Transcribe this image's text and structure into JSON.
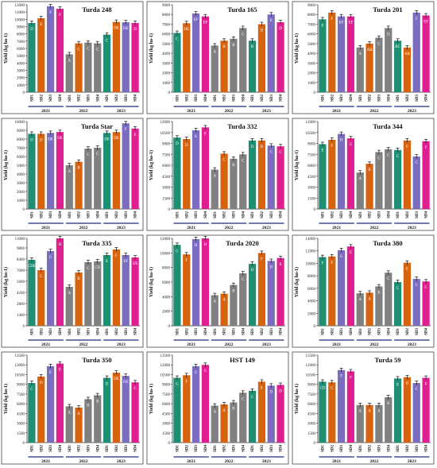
{
  "colors": {
    "bar": [
      "#1e8f73",
      "#d8630f",
      "#7b6cc0",
      "#e01e8f",
      "#808080"
    ],
    "year_bar": "#1b2a7a"
  },
  "charts": [
    {
      "title": "Turda 248",
      "ylabel": "Yield (kg ha-1)",
      "ylim": [
        0,
        12000
      ],
      "yticks": [
        0,
        1000,
        2000,
        3000,
        4000,
        5000,
        6000,
        7000,
        8000,
        9000,
        10000,
        11000,
        12000
      ],
      "values": [
        9500,
        10150,
        11800,
        11450,
        5200,
        6700,
        6800,
        6700,
        7900,
        9650,
        9600,
        9500
      ],
      "letters": [
        "D",
        "E",
        "F",
        "F",
        "A",
        "C",
        "C",
        "C",
        "C",
        "DE",
        "DE",
        "D"
      ]
    },
    {
      "title": "Turda 165",
      "ylabel": "Yield (kg ha-1)",
      "ylim": [
        0,
        9000
      ],
      "yticks": [
        0,
        1000,
        2000,
        3000,
        4000,
        5000,
        6000,
        7000,
        8000,
        9000
      ],
      "values": [
        6100,
        7100,
        8100,
        7800,
        4800,
        5300,
        5500,
        6600,
        5300,
        7000,
        8000,
        7200
      ],
      "letters": [
        "C",
        "DE",
        "EF",
        "EF",
        "A",
        "B",
        "B",
        "C",
        "B",
        "D",
        "E",
        "D"
      ]
    },
    {
      "title": "Turda 201",
      "ylabel": "Yield (kg ha-1)",
      "ylim": [
        0,
        9000
      ],
      "yticks": [
        0,
        1000,
        2000,
        3000,
        4000,
        5000,
        6000,
        7000,
        8000,
        9000
      ],
      "values": [
        7500,
        8200,
        7800,
        7800,
        4600,
        5000,
        5600,
        6600,
        5300,
        4600,
        8200,
        7900
      ],
      "letters": [
        "E",
        "F",
        "EF",
        "EF",
        "A",
        "AB",
        "C",
        "D",
        "BC",
        "AB",
        "F",
        "EF"
      ]
    },
    {
      "title": "Turda Star",
      "ylabel": "Yield (kg ha-1)",
      "ylim": [
        0,
        10000
      ],
      "yticks": [
        0,
        1000,
        2000,
        3000,
        4000,
        5000,
        6000,
        7000,
        8000,
        9000,
        10000
      ],
      "values": [
        8600,
        8600,
        8700,
        8800,
        5000,
        5400,
        6900,
        7000,
        8700,
        8800,
        9800,
        9200
      ],
      "letters": [
        "D",
        "D",
        "DE",
        "DE",
        "A",
        "B",
        "C",
        "C",
        "DE",
        "DE",
        "F",
        "E"
      ]
    },
    {
      "title": "Turda 332",
      "ylabel": "Yield (kg ha-1)",
      "ylim": [
        0,
        12000
      ],
      "yticks": [
        0,
        1500,
        3000,
        4500,
        6000,
        7500,
        9000,
        10500,
        12000
      ],
      "values": [
        9800,
        9600,
        10800,
        11200,
        5400,
        7600,
        6900,
        7500,
        9400,
        9400,
        8700,
        8600
      ],
      "letters": [
        "D",
        "D",
        "E",
        "E",
        "A",
        "C",
        "B",
        "C",
        "D",
        "D",
        "C",
        "C"
      ]
    },
    {
      "title": "Turda 344",
      "ylabel": "Yield (kg ha-1)",
      "ylim": [
        0,
        12000
      ],
      "yticks": [
        0,
        1500,
        3000,
        4500,
        6000,
        7500,
        9000,
        10500,
        12000
      ],
      "values": [
        8900,
        9500,
        10300,
        9700,
        5000,
        6200,
        7800,
        8200,
        8100,
        9400,
        7200,
        9300
      ],
      "letters": [
        "E",
        "F",
        "H",
        "G",
        "A",
        "B",
        "C",
        "C",
        "C",
        "F",
        "C",
        "F"
      ]
    },
    {
      "title": "Turda 335",
      "ylabel": "Yield (kg ha-1)",
      "ylim": [
        0,
        11000
      ],
      "yticks": [
        0,
        1400,
        2800,
        4200,
        5600,
        7000,
        8400,
        9800,
        11000
      ],
      "values": [
        8300,
        7000,
        9400,
        11000,
        4900,
        6700,
        8000,
        8100,
        8900,
        9600,
        8900,
        8600
      ],
      "letters": [
        "CDE",
        "C",
        "G",
        "H",
        "A",
        "B",
        "C",
        "CD",
        "E",
        "F",
        "EF",
        "DE"
      ]
    },
    {
      "title": "Turda 2020",
      "ylabel": "Yield (kg ha-1)",
      "ylim": [
        0,
        12000
      ],
      "yticks": [
        0,
        2000,
        4000,
        6000,
        8000,
        10000,
        12000
      ],
      "values": [
        11100,
        9800,
        11900,
        12000,
        4200,
        4400,
        5600,
        7200,
        8500,
        10000,
        8900,
        9300
      ],
      "letters": [
        "G",
        "F",
        "H",
        "H",
        "A",
        "A",
        "B",
        "C",
        "D",
        "F",
        "D",
        "E"
      ]
    },
    {
      "title": "Turda 380",
      "ylabel": "Yield (kg ha-1)",
      "ylim": [
        0,
        14000
      ],
      "yticks": [
        0,
        2000,
        4000,
        6000,
        8000,
        10000,
        12000,
        14000
      ],
      "values": [
        11000,
        11100,
        12100,
        12700,
        5200,
        5300,
        6300,
        8500,
        7000,
        10100,
        7500,
        7100
      ],
      "letters": [
        "F",
        "F",
        "G",
        "G",
        "A",
        "A",
        "B",
        "C",
        "C",
        "E",
        "C",
        "C"
      ]
    },
    {
      "title": "Turda 350",
      "ylabel": "Yield (kg ha-1)",
      "ylim": [
        0,
        13500
      ],
      "yticks": [
        0,
        1500,
        3000,
        4500,
        6000,
        7500,
        9000,
        10500,
        12000,
        13500
      ],
      "values": [
        9200,
        10200,
        11800,
        12200,
        5600,
        5400,
        6700,
        7300,
        10000,
        10800,
        10300,
        9300
      ],
      "letters": [
        "C",
        "D",
        "E",
        "E",
        "A",
        "A",
        "B",
        "B",
        "D",
        "DE",
        "DE",
        "C"
      ]
    },
    {
      "title": "HST 149",
      "ylabel": "Yield (kg ha-1)",
      "ylim": [
        0,
        13500
      ],
      "yticks": [
        0,
        1500,
        3000,
        4500,
        6000,
        7500,
        9000,
        10500,
        12000,
        13500
      ],
      "values": [
        10000,
        10400,
        11800,
        12000,
        5700,
        5900,
        6200,
        7700,
        8000,
        9400,
        8800,
        8900
      ],
      "letters": [
        "G",
        "F",
        "G",
        "G",
        "A",
        "A",
        "B",
        "C",
        "C",
        "E",
        "D",
        "D"
      ]
    },
    {
      "title": "Turda 59",
      "ylabel": "Yield (kg ha-1)",
      "ylim": [
        0,
        13500
      ],
      "yticks": [
        0,
        1500,
        3000,
        4500,
        6000,
        7500,
        9000,
        10500,
        12000,
        13500
      ],
      "values": [
        9400,
        9300,
        11200,
        11000,
        5800,
        5800,
        5800,
        7000,
        9900,
        10100,
        9200,
        10000
      ],
      "letters": [
        "CD",
        "C",
        "F",
        "F",
        "A",
        "A",
        "A",
        "B",
        "E",
        "D",
        "C",
        "E"
      ]
    }
  ],
  "chart_data": [
    {
      "type": "bar",
      "title": "Turda 248",
      "ylabel": "Yield (kg ha-1)",
      "categories": [
        "SD1",
        "SD2",
        "SD3",
        "SD4",
        "SD1",
        "SD2",
        "SD3",
        "SD4",
        "SD1",
        "SD2",
        "SD3",
        "SD4"
      ],
      "groups": [
        "2021",
        "2022",
        "2023"
      ],
      "values": [
        9500,
        10150,
        11800,
        11450,
        5200,
        6700,
        6800,
        6700,
        7900,
        9650,
        9600,
        9500
      ],
      "ylim": [
        0,
        12000
      ]
    },
    {
      "type": "bar",
      "title": "Turda 165",
      "ylabel": "Yield (kg ha-1)",
      "categories": [
        "SD1",
        "SD2",
        "SD3",
        "SD4",
        "SD1",
        "SD2",
        "SD3",
        "SD4",
        "SD1",
        "SD2",
        "SD3",
        "SD4"
      ],
      "groups": [
        "2021",
        "2022",
        "2023"
      ],
      "values": [
        6100,
        7100,
        8100,
        7800,
        4800,
        5300,
        5500,
        6600,
        5300,
        7000,
        8000,
        7200
      ],
      "ylim": [
        0,
        9000
      ]
    },
    {
      "type": "bar",
      "title": "Turda 201",
      "ylabel": "Yield (kg ha-1)",
      "categories": [
        "SD1",
        "SD2",
        "SD3",
        "SD4",
        "SD1",
        "SD2",
        "SD3",
        "SD4",
        "SD1",
        "SD2",
        "SD3",
        "SD4"
      ],
      "groups": [
        "2021",
        "2022",
        "2023"
      ],
      "values": [
        7500,
        8200,
        7800,
        7800,
        4600,
        5000,
        5600,
        6600,
        5300,
        4600,
        8200,
        7900
      ],
      "ylim": [
        0,
        9000
      ]
    },
    {
      "type": "bar",
      "title": "Turda Star",
      "ylabel": "Yield (kg ha-1)",
      "categories": [
        "SD1",
        "SD2",
        "SD3",
        "SD4",
        "SD1",
        "SD2",
        "SD3",
        "SD4",
        "SD1",
        "SD2",
        "SD3",
        "SD4"
      ],
      "groups": [
        "2021",
        "2022",
        "2023"
      ],
      "values": [
        8600,
        8600,
        8700,
        8800,
        5000,
        5400,
        6900,
        7000,
        8700,
        8800,
        9800,
        9200
      ],
      "ylim": [
        0,
        10000
      ]
    },
    {
      "type": "bar",
      "title": "Turda 332",
      "ylabel": "Yield (kg ha-1)",
      "categories": [
        "SD1",
        "SD2",
        "SD3",
        "SD4",
        "SD1",
        "SD2",
        "SD3",
        "SD4",
        "SD1",
        "SD2",
        "SD3",
        "SD4"
      ],
      "groups": [
        "2021",
        "2022",
        "2023"
      ],
      "values": [
        9800,
        9600,
        10800,
        11200,
        5400,
        7600,
        6900,
        7500,
        9400,
        9400,
        8700,
        8600
      ],
      "ylim": [
        0,
        12000
      ]
    },
    {
      "type": "bar",
      "title": "Turda 344",
      "ylabel": "Yield (kg ha-1)",
      "categories": [
        "SD1",
        "SD2",
        "SD3",
        "SD4",
        "SD1",
        "SD2",
        "SD3",
        "SD4",
        "SD1",
        "SD2",
        "SD3",
        "SD4"
      ],
      "groups": [
        "2021",
        "2022",
        "2023"
      ],
      "values": [
        8900,
        9500,
        10300,
        9700,
        5000,
        6200,
        7800,
        8200,
        8100,
        9400,
        7200,
        9300
      ],
      "ylim": [
        0,
        12000
      ]
    },
    {
      "type": "bar",
      "title": "Turda 335",
      "ylabel": "Yield (kg ha-1)",
      "categories": [
        "SD1",
        "SD2",
        "SD3",
        "SD4",
        "SD1",
        "SD2",
        "SD3",
        "SD4",
        "SD1",
        "SD2",
        "SD3",
        "SD4"
      ],
      "groups": [
        "2021",
        "2022",
        "2023"
      ],
      "values": [
        8300,
        7000,
        9400,
        11000,
        4900,
        6700,
        8000,
        8100,
        8900,
        9600,
        8900,
        8600
      ],
      "ylim": [
        0,
        11000
      ]
    },
    {
      "type": "bar",
      "title": "Turda 2020",
      "ylabel": "Yield (kg ha-1)",
      "categories": [
        "SD1",
        "SD2",
        "SD3",
        "SD4",
        "SD1",
        "SD2",
        "SD3",
        "SD4",
        "SD1",
        "SD2",
        "SD3",
        "SD4"
      ],
      "groups": [
        "2021",
        "2022",
        "2023"
      ],
      "values": [
        11100,
        9800,
        11900,
        12000,
        4200,
        4400,
        5600,
        7200,
        8500,
        10000,
        8900,
        9300
      ],
      "ylim": [
        0,
        12000
      ]
    },
    {
      "type": "bar",
      "title": "Turda 380",
      "ylabel": "Yield (kg ha-1)",
      "categories": [
        "SD1",
        "SD2",
        "SD3",
        "SD4",
        "SD1",
        "SD2",
        "SD3",
        "SD4",
        "SD1",
        "SD2",
        "SD3",
        "SD4"
      ],
      "groups": [
        "2021",
        "2022",
        "2023"
      ],
      "values": [
        11000,
        11100,
        12100,
        12700,
        5200,
        5300,
        6300,
        8500,
        7000,
        10100,
        7500,
        7100
      ],
      "ylim": [
        0,
        14000
      ]
    },
    {
      "type": "bar",
      "title": "Turda 350",
      "ylabel": "Yield (kg ha-1)",
      "categories": [
        "SD1",
        "SD2",
        "SD3",
        "SD4",
        "SD1",
        "SD2",
        "SD3",
        "SD4",
        "SD1",
        "SD2",
        "SD3",
        "SD4"
      ],
      "groups": [
        "2021",
        "2022",
        "2023"
      ],
      "values": [
        9200,
        10200,
        11800,
        12200,
        5600,
        5400,
        6700,
        7300,
        10000,
        10800,
        10300,
        9300
      ],
      "ylim": [
        0,
        13500
      ]
    },
    {
      "type": "bar",
      "title": "HST 149",
      "ylabel": "Yield (kg ha-1)",
      "categories": [
        "SD1",
        "SD2",
        "SD3",
        "SD4",
        "SD1",
        "SD2",
        "SD3",
        "SD4",
        "SD1",
        "SD2",
        "SD3",
        "SD4"
      ],
      "groups": [
        "2021",
        "2022",
        "2023"
      ],
      "values": [
        10000,
        10400,
        11800,
        12000,
        5700,
        5900,
        6200,
        7700,
        8000,
        9400,
        8800,
        8900
      ],
      "ylim": [
        0,
        13500
      ]
    },
    {
      "type": "bar",
      "title": "Turda 59",
      "ylabel": "Yield (kg ha-1)",
      "categories": [
        "SD1",
        "SD2",
        "SD3",
        "SD4",
        "SD1",
        "SD2",
        "SD3",
        "SD4",
        "SD1",
        "SD2",
        "SD3",
        "SD4"
      ],
      "groups": [
        "2021",
        "2022",
        "2023"
      ],
      "values": [
        9400,
        9300,
        11200,
        11000,
        5800,
        5800,
        5800,
        7000,
        9900,
        10100,
        9200,
        10000
      ],
      "ylim": [
        0,
        13500
      ]
    }
  ],
  "x_labels": [
    "SD1",
    "SD2",
    "SD3",
    "SD4",
    "SD1",
    "SD2",
    "SD3",
    "SD4",
    "SD1",
    "SD2",
    "SD3",
    "SD4"
  ],
  "years": [
    "2021",
    "2022",
    "2023"
  ]
}
